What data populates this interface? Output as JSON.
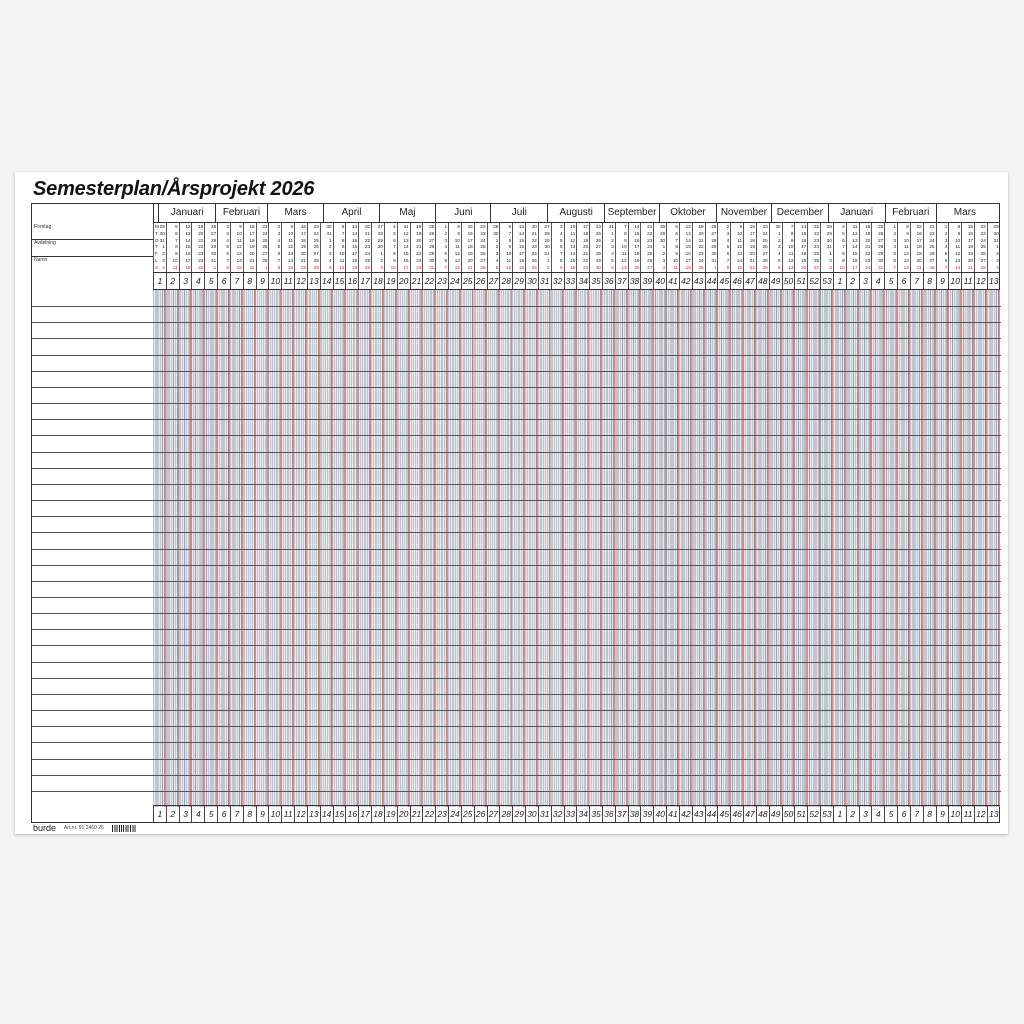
{
  "title": "Semesterplan/Årsprojekt 2026",
  "fields": [
    "Företag",
    "Avdelning",
    "Namn"
  ],
  "months": [
    {
      "label": "Januari",
      "days": 31
    },
    {
      "label": "Februari",
      "days": 28
    },
    {
      "label": "Mars",
      "days": 31
    },
    {
      "label": "April",
      "days": 30
    },
    {
      "label": "Maj",
      "days": 31
    },
    {
      "label": "Juni",
      "days": 30
    },
    {
      "label": "Juli",
      "days": 31
    },
    {
      "label": "Augusti",
      "days": 31
    },
    {
      "label": "September",
      "days": 30
    },
    {
      "label": "Oktober",
      "days": 31
    },
    {
      "label": "November",
      "days": 30
    },
    {
      "label": "December",
      "days": 31
    },
    {
      "label": "Januari",
      "days": 31
    },
    {
      "label": "Februari",
      "days": 28
    },
    {
      "label": "Mars",
      "days": 31
    }
  ],
  "weekday_letters": [
    "M",
    "T",
    "O",
    "T",
    "F",
    "L",
    "S"
  ],
  "week_numbers": [
    1,
    2,
    3,
    4,
    5,
    6,
    7,
    8,
    9,
    10,
    11,
    12,
    13,
    14,
    15,
    16,
    17,
    18,
    19,
    20,
    21,
    22,
    23,
    24,
    25,
    26,
    27,
    28,
    29,
    30,
    31,
    32,
    33,
    34,
    35,
    36,
    37,
    38,
    39,
    40,
    41,
    42,
    43,
    44,
    45,
    46,
    47,
    48,
    49,
    50,
    51,
    52,
    53,
    1,
    2,
    3,
    4,
    5,
    6,
    7,
    8,
    9,
    10,
    11,
    12,
    13
  ],
  "week_days": [
    [
      29,
      30,
      31,
      1,
      2,
      3,
      4
    ],
    [
      5,
      6,
      7,
      8,
      9,
      10,
      11
    ],
    [
      12,
      13,
      14,
      15,
      16,
      17,
      18
    ],
    [
      19,
      20,
      21,
      22,
      23,
      24,
      25
    ],
    [
      26,
      27,
      28,
      29,
      30,
      31,
      1
    ],
    [
      2,
      3,
      4,
      5,
      6,
      7,
      8
    ],
    [
      9,
      10,
      11,
      12,
      13,
      14,
      15
    ],
    [
      16,
      17,
      18,
      19,
      20,
      21,
      22
    ],
    [
      23,
      24,
      25,
      26,
      27,
      28,
      1
    ],
    [
      2,
      3,
      4,
      5,
      6,
      7,
      8
    ],
    [
      9,
      10,
      11,
      12,
      13,
      14,
      15
    ],
    [
      16,
      17,
      18,
      19,
      20,
      21,
      22
    ],
    [
      23,
      24,
      25,
      26,
      27,
      28,
      29
    ],
    [
      30,
      31,
      1,
      2,
      3,
      4,
      5
    ],
    [
      6,
      7,
      8,
      9,
      10,
      11,
      12
    ],
    [
      13,
      14,
      15,
      16,
      17,
      18,
      19
    ],
    [
      20,
      21,
      22,
      23,
      24,
      25,
      26
    ],
    [
      27,
      28,
      29,
      30,
      1,
      2,
      3
    ],
    [
      4,
      5,
      6,
      7,
      8,
      9,
      10
    ],
    [
      11,
      12,
      13,
      14,
      15,
      16,
      17
    ],
    [
      18,
      19,
      20,
      21,
      22,
      23,
      24
    ],
    [
      25,
      26,
      27,
      28,
      29,
      30,
      31
    ],
    [
      1,
      2,
      3,
      4,
      5,
      6,
      7
    ],
    [
      8,
      9,
      10,
      11,
      12,
      13,
      14
    ],
    [
      15,
      16,
      17,
      18,
      19,
      20,
      21
    ],
    [
      22,
      23,
      24,
      25,
      26,
      27,
      28
    ],
    [
      29,
      30,
      1,
      2,
      3,
      4,
      5
    ],
    [
      6,
      7,
      8,
      9,
      10,
      11,
      12
    ],
    [
      13,
      14,
      15,
      16,
      17,
      18,
      19
    ],
    [
      20,
      21,
      22,
      23,
      24,
      25,
      26
    ],
    [
      27,
      28,
      29,
      30,
      31,
      1,
      2
    ],
    [
      3,
      4,
      5,
      6,
      7,
      8,
      9
    ],
    [
      10,
      11,
      12,
      13,
      14,
      15,
      16
    ],
    [
      17,
      18,
      19,
      20,
      21,
      22,
      23
    ],
    [
      24,
      25,
      26,
      27,
      28,
      29,
      30
    ],
    [
      31,
      1,
      2,
      3,
      4,
      5,
      6
    ],
    [
      7,
      8,
      9,
      10,
      11,
      12,
      13
    ],
    [
      14,
      15,
      16,
      17,
      18,
      19,
      20
    ],
    [
      21,
      22,
      23,
      24,
      25,
      26,
      27
    ],
    [
      28,
      29,
      30,
      1,
      2,
      3,
      4
    ],
    [
      5,
      6,
      7,
      8,
      9,
      10,
      11
    ],
    [
      12,
      13,
      14,
      15,
      16,
      17,
      18
    ],
    [
      19,
      20,
      21,
      22,
      23,
      24,
      25
    ],
    [
      26,
      27,
      28,
      29,
      30,
      31,
      1
    ],
    [
      2,
      3,
      4,
      5,
      6,
      7,
      8
    ],
    [
      9,
      10,
      11,
      12,
      13,
      14,
      15
    ],
    [
      16,
      17,
      18,
      19,
      20,
      21,
      22
    ],
    [
      23,
      24,
      25,
      26,
      27,
      28,
      29
    ],
    [
      30,
      1,
      2,
      3,
      4,
      5,
      6
    ],
    [
      7,
      8,
      9,
      10,
      11,
      12,
      13
    ],
    [
      14,
      15,
      16,
      17,
      18,
      19,
      20
    ],
    [
      21,
      22,
      23,
      24,
      25,
      26,
      27
    ],
    [
      28,
      29,
      30,
      31,
      1,
      2,
      3
    ],
    [
      4,
      5,
      6,
      7,
      8,
      9,
      10
    ],
    [
      11,
      12,
      13,
      14,
      15,
      16,
      17
    ],
    [
      18,
      19,
      20,
      21,
      22,
      23,
      24
    ],
    [
      25,
      26,
      27,
      28,
      29,
      30,
      31
    ],
    [
      1,
      2,
      3,
      4,
      5,
      6,
      7
    ],
    [
      8,
      9,
      10,
      11,
      12,
      13,
      14
    ],
    [
      15,
      16,
      17,
      18,
      19,
      20,
      21
    ],
    [
      22,
      23,
      24,
      25,
      26,
      27,
      28
    ],
    [
      1,
      2,
      3,
      4,
      5,
      6,
      7
    ],
    [
      8,
      9,
      10,
      11,
      12,
      13,
      14
    ],
    [
      15,
      16,
      17,
      18,
      19,
      20,
      21
    ],
    [
      22,
      23,
      24,
      25,
      26,
      27,
      28
    ],
    [
      29,
      30,
      31,
      1,
      2,
      3,
      4
    ]
  ],
  "footer": {
    "brand": "burde",
    "article": "Art.nr. 91 2460 26"
  },
  "colors": {
    "sunday": "#c8283a",
    "grid_line": "#9aa3ad",
    "ink": "#222222"
  }
}
